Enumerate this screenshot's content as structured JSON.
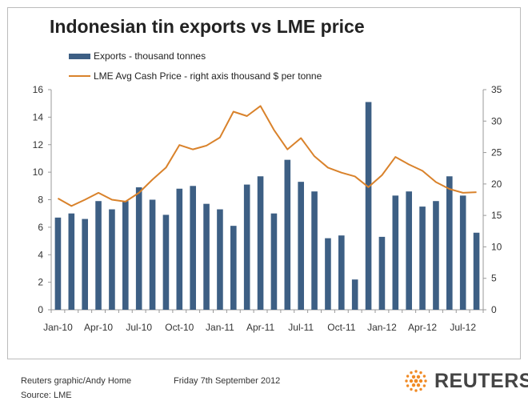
{
  "colors": {
    "bars": "#3d5f84",
    "line": "#d9822b",
    "axis": "#999999",
    "logo": "#f08a24"
  },
  "chart_data": {
    "type": "bar",
    "title": "Indonesian tin exports vs LME price",
    "categories": [
      "Jan-10",
      "Feb-10",
      "Mar-10",
      "Apr-10",
      "May-10",
      "Jun-10",
      "Jul-10",
      "Aug-10",
      "Sep-10",
      "Oct-10",
      "Nov-10",
      "Dec-10",
      "Jan-11",
      "Feb-11",
      "Mar-11",
      "Apr-11",
      "May-11",
      "Jun-11",
      "Jul-11",
      "Aug-11",
      "Sep-11",
      "Oct-11",
      "Nov-11",
      "Dec-11",
      "Jan-12",
      "Feb-12",
      "Mar-12",
      "Apr-12",
      "May-12",
      "Jun-12",
      "Jul-12",
      "Aug-12"
    ],
    "x_tick_labels": [
      "Jan-10",
      "Apr-10",
      "Jul-10",
      "Oct-10",
      "Jan-11",
      "Apr-11",
      "Jul-11",
      "Oct-11",
      "Jan-12",
      "Apr-12",
      "Jul-12"
    ],
    "series": [
      {
        "name": "Exports - thousand tonnes",
        "type": "bar",
        "axis": "left",
        "values": [
          6.7,
          7.0,
          6.6,
          7.9,
          7.3,
          7.9,
          8.9,
          8.0,
          6.9,
          8.8,
          9.0,
          7.7,
          7.3,
          6.1,
          9.1,
          9.7,
          7.0,
          10.9,
          9.3,
          8.6,
          5.2,
          5.4,
          2.2,
          15.1,
          5.3,
          8.3,
          8.6,
          7.5,
          7.9,
          9.7,
          8.3,
          5.6
        ]
      },
      {
        "name": "LME Avg Cash Price - right axis thousand $ per tonne",
        "type": "line",
        "axis": "right",
        "values": [
          17.7,
          16.5,
          17.5,
          18.6,
          17.5,
          17.2,
          18.6,
          20.7,
          22.6,
          26.2,
          25.5,
          26.1,
          27.4,
          31.5,
          30.8,
          32.4,
          28.6,
          25.5,
          27.3,
          24.4,
          22.6,
          21.8,
          21.2,
          19.5,
          21.4,
          24.3,
          23.1,
          22.1,
          20.3,
          19.2,
          18.6,
          18.7
        ]
      }
    ],
    "left_axis": {
      "ticks": [
        "0",
        "2",
        "4",
        "6",
        "8",
        "10",
        "12",
        "14",
        "16"
      ],
      "ylim": [
        0,
        16
      ]
    },
    "right_axis": {
      "ticks": [
        "0",
        "5",
        "10",
        "15",
        "20",
        "25",
        "30",
        "35"
      ],
      "ylim": [
        0,
        35
      ]
    },
    "legend_position": "top-left",
    "grid": false
  },
  "footer": {
    "credit": "Reuters graphic/Andy Home",
    "source": "Source: LME",
    "date": "Friday 7th September 2012",
    "logo_text": "REUTERS"
  }
}
